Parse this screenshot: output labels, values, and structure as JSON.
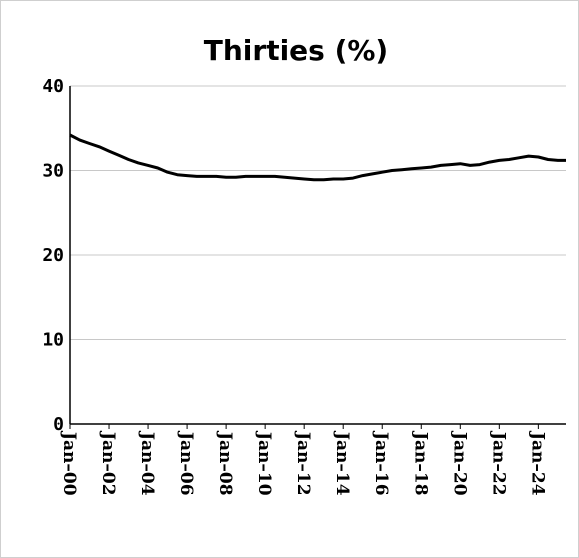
{
  "chart_data": {
    "type": "line",
    "title": "Thirties (%)",
    "xlabel": "",
    "ylabel": "",
    "ylim": [
      0,
      40
    ],
    "yticks": [
      "0",
      "10",
      "20",
      "30",
      "40"
    ],
    "xticks": [
      "Jan–00",
      "Jan–02",
      "Jan–04",
      "Jan–06",
      "Jan–08",
      "Jan–10",
      "Jan–12",
      "Jan–14",
      "Jan–16",
      "Jan–18",
      "Jan–20",
      "Jan–22",
      "Jan–24"
    ],
    "grid": true,
    "legend": "none",
    "line_color": "#000000",
    "x_start": "2000-01",
    "x_end": "2025-06",
    "series": [
      {
        "x": [
          "2000-01",
          "2000-07",
          "2001-01",
          "2001-07",
          "2002-01",
          "2002-07",
          "2003-01",
          "2003-07",
          "2004-01",
          "2004-07",
          "2005-01",
          "2005-07",
          "2006-01",
          "2006-07",
          "2007-01",
          "2007-07",
          "2008-01",
          "2008-07",
          "2009-01",
          "2009-07",
          "2010-01",
          "2010-07",
          "2011-01",
          "2011-07",
          "2012-01",
          "2012-07",
          "2013-01",
          "2013-07",
          "2014-01",
          "2014-07",
          "2015-01",
          "2015-07",
          "2016-01",
          "2016-07",
          "2017-01",
          "2017-07",
          "2018-01",
          "2018-07",
          "2019-01",
          "2019-07",
          "2020-01",
          "2020-07",
          "2021-01",
          "2021-07",
          "2022-01",
          "2022-07",
          "2023-01",
          "2023-07",
          "2024-01",
          "2024-07",
          "2025-01",
          "2025-06"
        ],
        "values": [
          34.2,
          33.6,
          33.2,
          32.8,
          32.3,
          31.8,
          31.3,
          30.9,
          30.6,
          30.3,
          29.8,
          29.5,
          29.4,
          29.3,
          29.3,
          29.3,
          29.2,
          29.2,
          29.3,
          29.3,
          29.3,
          29.3,
          29.2,
          29.1,
          29.0,
          28.9,
          28.9,
          29.0,
          29.0,
          29.1,
          29.4,
          29.6,
          29.8,
          30.0,
          30.1,
          30.2,
          30.3,
          30.4,
          30.6,
          30.7,
          30.8,
          30.6,
          30.7,
          31.0,
          31.2,
          31.3,
          31.5,
          31.7,
          31.6,
          31.3,
          31.2,
          31.2
        ]
      }
    ]
  }
}
